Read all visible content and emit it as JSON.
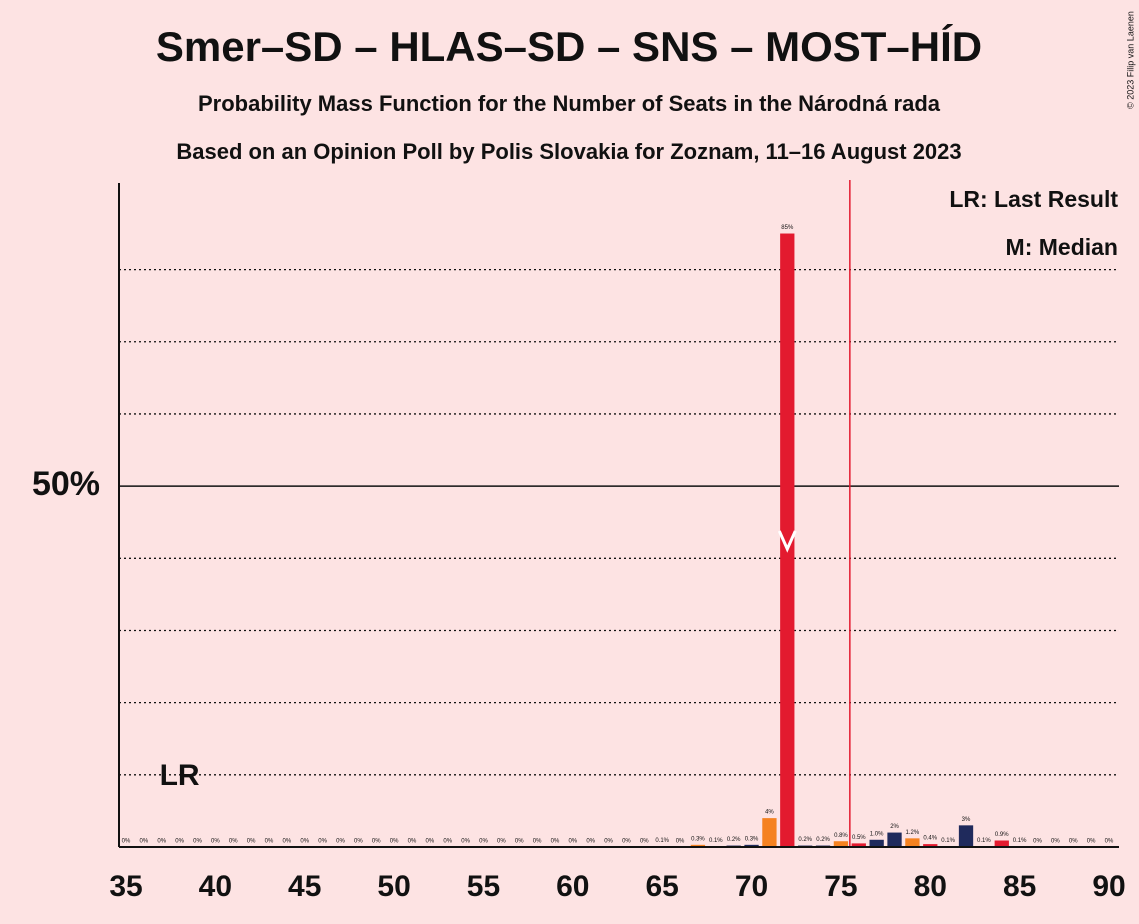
{
  "chart_data": {
    "type": "bar",
    "title": "Smer–SD – HLAS–SD – SNS – MOST–HÍD",
    "subtitle": "Probability Mass Function for the Number of Seats in the Národná rada",
    "subtitle2": "Based on an Opinion Poll by Polis Slovakia for Zoznam, 11–16 August 2023",
    "copyright": "© 2023 Filip van Laenen",
    "legend": [
      "LR: Last Result",
      "M: Median"
    ],
    "last_result_label": "LR",
    "x": [
      35,
      36,
      37,
      38,
      39,
      40,
      41,
      42,
      43,
      44,
      45,
      46,
      47,
      48,
      49,
      50,
      51,
      52,
      53,
      54,
      55,
      56,
      57,
      58,
      59,
      60,
      61,
      62,
      63,
      64,
      65,
      66,
      67,
      68,
      69,
      70,
      71,
      72,
      73,
      74,
      75,
      76,
      77,
      78,
      79,
      80,
      81,
      82,
      83,
      84,
      85,
      86,
      87,
      88,
      89,
      90
    ],
    "values": [
      0,
      0,
      0,
      0,
      0,
      0,
      0,
      0,
      0,
      0,
      0,
      0,
      0,
      0,
      0,
      0,
      0,
      0,
      0,
      0,
      0,
      0,
      0,
      0,
      0,
      0,
      0,
      0,
      0,
      0,
      0.1,
      0,
      0.3,
      0.1,
      0.2,
      0.3,
      4,
      85,
      0.2,
      0.2,
      0.8,
      0.5,
      1.0,
      2,
      1.2,
      0.4,
      0.1,
      3,
      0.1,
      0.9,
      0.1,
      0,
      0,
      0,
      0,
      0
    ],
    "value_labels": [
      "0%",
      "0%",
      "0%",
      "0%",
      "0%",
      "0%",
      "0%",
      "0%",
      "0%",
      "0%",
      "0%",
      "0%",
      "0%",
      "0%",
      "0%",
      "0%",
      "0%",
      "0%",
      "0%",
      "0%",
      "0%",
      "0%",
      "0%",
      "0%",
      "0%",
      "0%",
      "0%",
      "0%",
      "0%",
      "0%",
      "0.1%",
      "0%",
      "0.3%",
      "0.1%",
      "0.2%",
      "0.3%",
      "4%",
      "85%",
      "0.2%",
      "0.2%",
      "0.8%",
      "0.5%",
      "1.0%",
      "2%",
      "1.2%",
      "0.4%",
      "0.1%",
      "3%",
      "0.1%",
      "0.9%",
      "0.1%",
      "0%",
      "0%",
      "0%",
      "0%",
      "0%"
    ],
    "colors": [
      "#f58220",
      "#e31a2f",
      "#1f2a5c",
      "#1f2a5c",
      "#f58220",
      "#e31a2f",
      "#1f2a5c",
      "#1f2a5c",
      "#f58220",
      "#e31a2f",
      "#1f2a5c",
      "#1f2a5c",
      "#f58220",
      "#e31a2f",
      "#1f2a5c",
      "#1f2a5c",
      "#f58220",
      "#e31a2f",
      "#1f2a5c",
      "#1f2a5c",
      "#f58220",
      "#e31a2f",
      "#1f2a5c",
      "#1f2a5c",
      "#f58220",
      "#e31a2f",
      "#1f2a5c",
      "#1f2a5c",
      "#f58220",
      "#e31a2f",
      "#1f2a5c",
      "#1f2a5c",
      "#f58220",
      "#e31a2f",
      "#1f2a5c",
      "#1f2a5c",
      "#f58220",
      "#e31a2f",
      "#1f2a5c",
      "#1f2a5c",
      "#f58220",
      "#e31a2f",
      "#1f2a5c",
      "#1f2a5c",
      "#f58220",
      "#e31a2f",
      "#1f2a5c",
      "#1f2a5c",
      "#f58220",
      "#e31a2f",
      "#1f2a5c",
      "#1f2a5c",
      "#f58220",
      "#e31a2f",
      "#1f2a5c",
      "#1f2a5c"
    ],
    "xlim": [
      35,
      90
    ],
    "xticks": [
      35,
      40,
      45,
      50,
      55,
      60,
      65,
      70,
      75,
      80,
      85,
      90
    ],
    "ylim": [
      0,
      92
    ],
    "yticks": [
      {
        "value": 50,
        "label": "50%"
      }
    ],
    "minor_gridlines": [
      10,
      20,
      30,
      40,
      60,
      70,
      80
    ],
    "median": 72,
    "last_result": 38,
    "majority_line": 75.5
  }
}
